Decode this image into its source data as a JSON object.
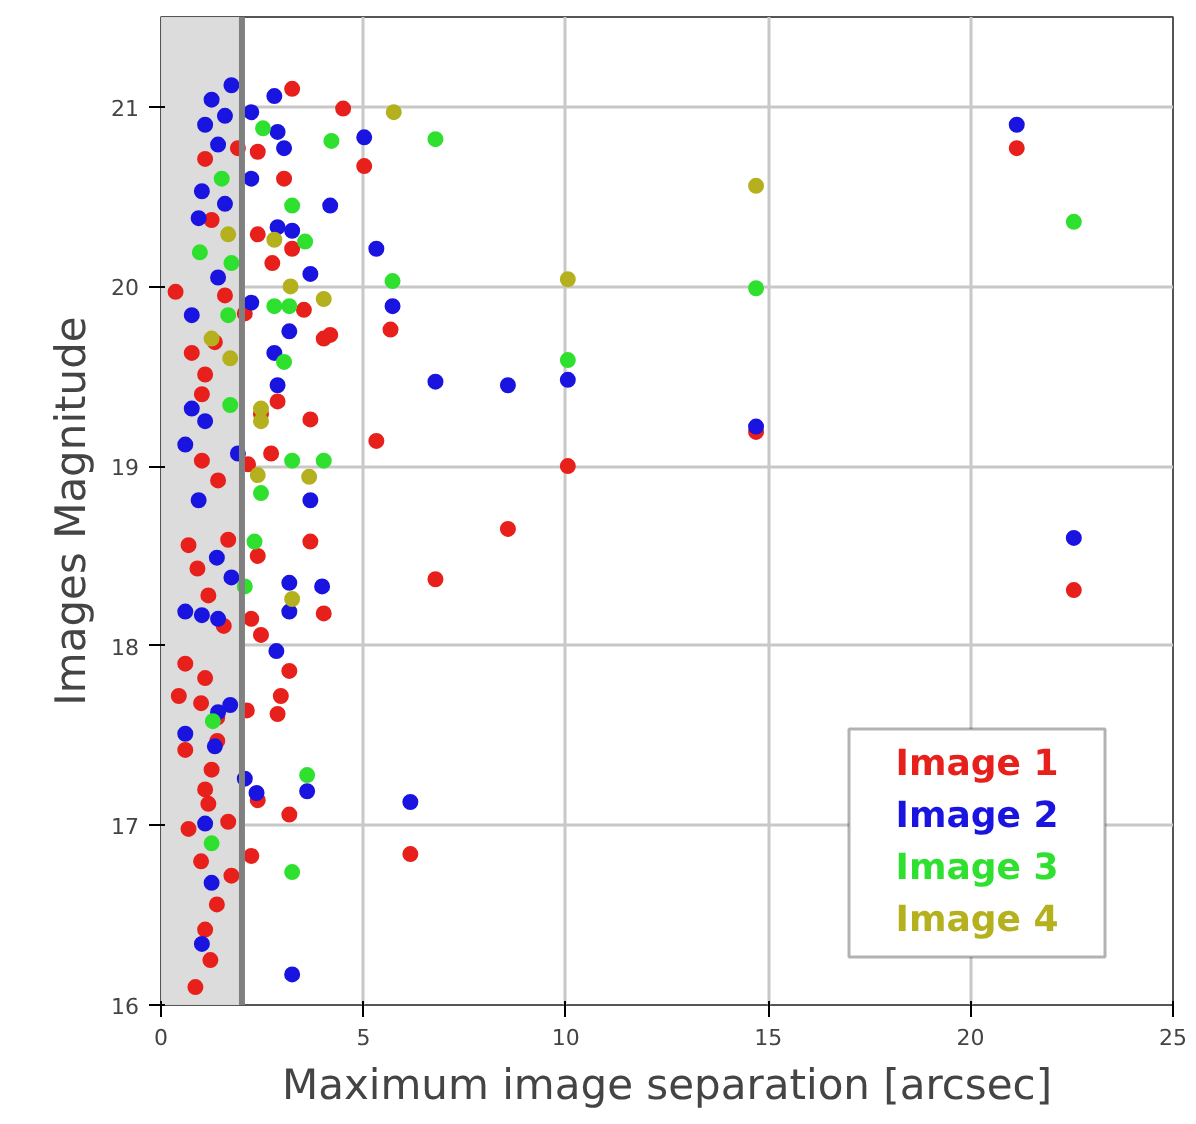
{
  "chart_data": {
    "type": "scatter",
    "xlabel": "Maximum image separation [arcsec]",
    "ylabel": "Images Magnitude",
    "xlim": [
      0,
      25
    ],
    "ylim": [
      16,
      21.5
    ],
    "xticks": [
      0,
      5,
      10,
      15,
      20,
      25
    ],
    "yticks": [
      16,
      17,
      18,
      19,
      20,
      21
    ],
    "grid": true,
    "legend": "bottom right",
    "marker": "circle",
    "bands": [
      {
        "axis": "x",
        "from": 0,
        "to": 2,
        "color": "#dcdcdc"
      }
    ],
    "ref_lines": [
      {
        "axis": "x",
        "value": 2,
        "color": "#808080"
      }
    ],
    "series": [
      {
        "name": "Image 1",
        "color": "#e8201c",
        "x": [
          21.14,
          22.55,
          14.7,
          10.05,
          8.57,
          6.78,
          6.16,
          3.24,
          4.5,
          5.02,
          1.09,
          3.04,
          2.39,
          1.9,
          1.25,
          2.39,
          3.24,
          2.75,
          0.36,
          3.53,
          1.58,
          4.18,
          4.02,
          5.67,
          0.76,
          1.09,
          2.88,
          3.69,
          1.01,
          5.32,
          2.47,
          1.33,
          2.07,
          2.72,
          1.01,
          2.15,
          1.41,
          0.68,
          0.9,
          1.66,
          2.39,
          3.69,
          4.02,
          2.23,
          1.17,
          1.55,
          2.47,
          0.6,
          1.09,
          3.17,
          0.44,
          0.99,
          2.96,
          2.88,
          2.12,
          0.6,
          1.39,
          1.25,
          1.09,
          1.17,
          2.39,
          3.17,
          1.66,
          0.68,
          2.23,
          0.99,
          1.74,
          1.38,
          1.09,
          1.22,
          0.85,
          1.39
        ],
        "values": [
          20.77,
          18.31,
          19.19,
          19.0,
          18.65,
          18.37,
          16.84,
          21.1,
          20.99,
          20.67,
          20.71,
          20.6,
          20.75,
          20.77,
          20.37,
          20.29,
          20.21,
          20.13,
          19.97,
          19.87,
          19.95,
          19.73,
          19.71,
          19.76,
          19.63,
          19.51,
          19.36,
          19.26,
          19.4,
          19.14,
          19.29,
          19.69,
          19.85,
          19.07,
          19.03,
          19.01,
          18.92,
          18.56,
          18.43,
          18.59,
          18.5,
          18.58,
          18.18,
          18.15,
          18.28,
          18.11,
          18.06,
          17.9,
          17.82,
          17.86,
          17.72,
          17.68,
          17.72,
          17.62,
          17.64,
          17.42,
          17.47,
          17.31,
          17.2,
          17.12,
          17.14,
          17.06,
          17.02,
          16.98,
          16.83,
          16.8,
          16.72,
          16.56,
          16.42,
          16.25,
          16.1,
          17.6
        ]
      },
      {
        "name": "Image 2",
        "color": "#1a14e0",
        "x": [
          21.14,
          22.55,
          14.7,
          10.05,
          8.57,
          6.78,
          6.16,
          1.74,
          2.8,
          1.25,
          1.09,
          1.58,
          2.23,
          2.88,
          3.04,
          5.02,
          1.41,
          1.01,
          2.23,
          4.18,
          0.93,
          1.58,
          2.88,
          3.24,
          5.32,
          3.69,
          1.41,
          5.72,
          0.76,
          3.17,
          2.23,
          2.8,
          2.88,
          0.76,
          0.6,
          3.69,
          1.9,
          1.09,
          0.93,
          0.6,
          1.01,
          1.41,
          1.38,
          1.74,
          3.17,
          3.98,
          3.17,
          2.85,
          1.71,
          1.41,
          0.6,
          1.33,
          2.07,
          2.36,
          3.61,
          1.09,
          1.25,
          1.01,
          3.24
        ],
        "values": [
          20.9,
          18.6,
          19.22,
          19.48,
          19.45,
          19.47,
          17.13,
          21.12,
          21.06,
          21.04,
          20.9,
          20.95,
          20.97,
          20.86,
          20.77,
          20.83,
          20.79,
          20.53,
          20.6,
          20.45,
          20.38,
          20.46,
          20.33,
          20.31,
          20.21,
          20.07,
          20.05,
          19.89,
          19.84,
          19.75,
          19.91,
          19.63,
          19.45,
          19.32,
          19.12,
          18.81,
          19.07,
          19.25,
          18.81,
          18.19,
          18.17,
          18.15,
          18.49,
          18.38,
          18.35,
          18.33,
          18.19,
          17.97,
          17.67,
          17.63,
          17.51,
          17.44,
          17.26,
          17.18,
          17.19,
          17.01,
          16.68,
          16.34,
          16.17
        ]
      },
      {
        "name": "Image 3",
        "color": "#2fe02f",
        "x": [
          22.55,
          14.7,
          10.05,
          6.78,
          2.52,
          4.21,
          1.5,
          3.24,
          3.56,
          0.96,
          1.74,
          2.8,
          3.17,
          5.72,
          3.04,
          1.71,
          3.24,
          4.02,
          2.47,
          1.66,
          2.31,
          2.07,
          1.28,
          3.61,
          1.25,
          3.24
        ],
        "values": [
          20.36,
          19.99,
          19.59,
          20.82,
          20.88,
          20.81,
          20.6,
          20.45,
          20.25,
          20.19,
          20.13,
          19.89,
          19.89,
          20.03,
          19.58,
          19.34,
          19.03,
          19.03,
          18.85,
          19.84,
          18.58,
          18.33,
          17.58,
          17.28,
          16.9,
          16.74
        ]
      },
      {
        "name": "Image 4",
        "color": "#b4b01e",
        "x": [
          14.7,
          10.05,
          5.75,
          2.8,
          3.2,
          4.02,
          1.25,
          1.71,
          2.47,
          2.47,
          3.66,
          2.39,
          1.66,
          3.24
        ],
        "values": [
          20.56,
          20.04,
          20.97,
          20.26,
          20.0,
          19.93,
          19.71,
          19.6,
          19.25,
          19.32,
          18.94,
          18.95,
          20.29,
          18.26
        ]
      }
    ]
  }
}
